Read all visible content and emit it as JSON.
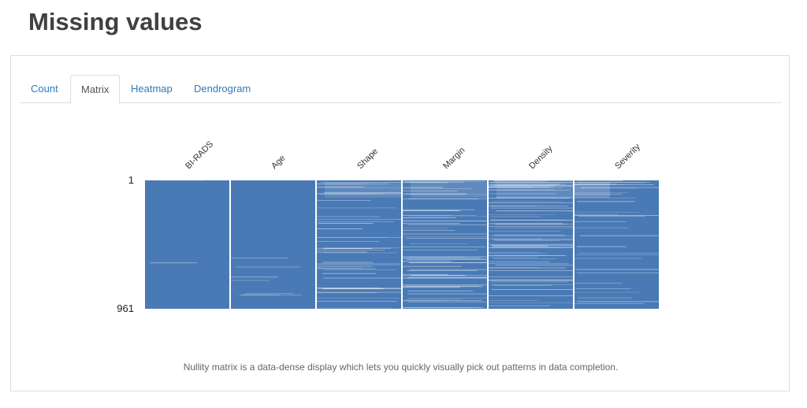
{
  "page": {
    "title": "Missing values"
  },
  "tabs": [
    {
      "label": "Count",
      "active": false
    },
    {
      "label": "Matrix",
      "active": true
    },
    {
      "label": "Heatmap",
      "active": false
    },
    {
      "label": "Dendrogram",
      "active": false
    }
  ],
  "chart_data": {
    "type": "heatmap",
    "kind": "nullity-matrix",
    "columns": [
      "BI-RADS",
      "Age",
      "Shape",
      "Margin",
      "Density",
      "Severity"
    ],
    "row_labels": [
      "1",
      "961"
    ],
    "rows": 961,
    "colors": {
      "present": "#4a7ab5",
      "missing": "#ffffff"
    }
  },
  "caption": "Nullity matrix is a data-dense display which lets you quickly visually pick out patterns in data completion."
}
